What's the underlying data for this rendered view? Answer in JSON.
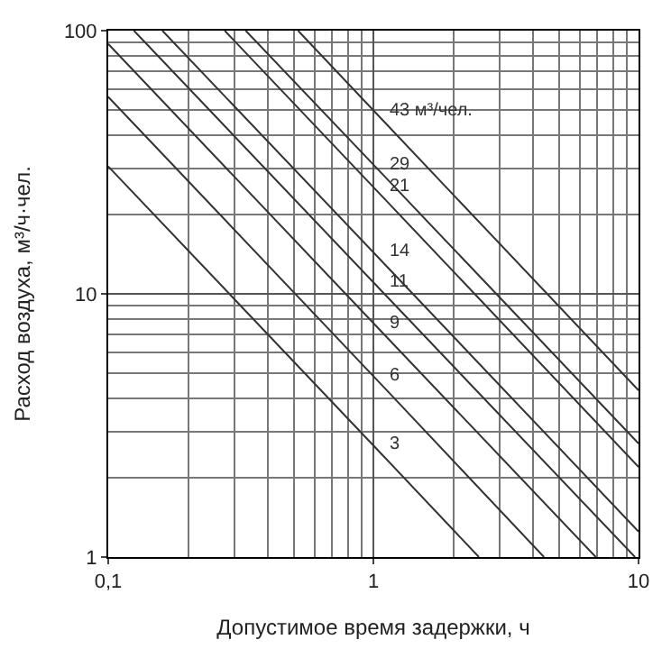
{
  "chart_data": {
    "type": "line",
    "xlabel": "Допустимое время задержки, ч",
    "ylabel": "Расход воздуха, м³/ч·чел.",
    "log": "xy",
    "grid": true,
    "marker": "none",
    "line_style": "solid",
    "xlim": [
      0.1,
      10
    ],
    "ylim": [
      1,
      100
    ],
    "xticks": [
      {
        "value": 0.1,
        "label": "0,1"
      },
      1,
      10
    ],
    "yticks": [
      1,
      10,
      100
    ],
    "series": [
      {
        "name": "3",
        "color": "#333333",
        "x": [
          0.1,
          1.1,
          2.5
        ],
        "values": [
          30.5,
          2.4,
          1
        ]
      },
      {
        "name": "6",
        "color": "#333333",
        "x": [
          0.1,
          1.1,
          4.4
        ],
        "values": [
          56,
          4.4,
          1
        ]
      },
      {
        "name": "9",
        "color": "#333333",
        "x": [
          0.1,
          1.1,
          6.9
        ],
        "values": [
          89,
          7,
          1
        ]
      },
      {
        "name": "11",
        "color": "#333333",
        "x": [
          0.125,
          1.1,
          9.7
        ],
        "values": [
          100,
          10,
          1
        ]
      },
      {
        "name": "14",
        "color": "#333333",
        "x": [
          0.16,
          1.1,
          10
        ],
        "values": [
          100,
          13,
          1.25
        ]
      },
      {
        "name": "21",
        "color": "#333333",
        "x": [
          0.275,
          1.1,
          10
        ],
        "values": [
          100,
          23,
          2.2
        ]
      },
      {
        "name": "29",
        "color": "#333333",
        "x": [
          0.33,
          1.1,
          10
        ],
        "values": [
          100,
          28,
          2.7
        ]
      },
      {
        "name": "43 м³/чел.",
        "color": "#333333",
        "x": [
          0.52,
          1.1,
          10
        ],
        "values": [
          100,
          45,
          4.3
        ]
      }
    ]
  }
}
